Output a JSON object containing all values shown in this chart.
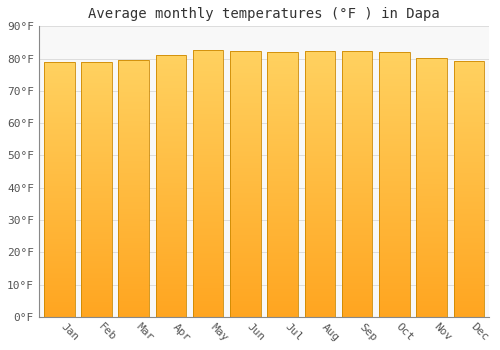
{
  "title": "Average monthly temperatures (°F ) in Dapa",
  "months": [
    "Jan",
    "Feb",
    "Mar",
    "Apr",
    "May",
    "Jun",
    "Jul",
    "Aug",
    "Sep",
    "Oct",
    "Nov",
    "Dec"
  ],
  "values": [
    78.8,
    78.8,
    79.7,
    81.0,
    82.8,
    82.2,
    81.9,
    82.2,
    82.2,
    81.9,
    80.2,
    79.3
  ],
  "ylim": [
    0,
    90
  ],
  "yticks": [
    0,
    10,
    20,
    30,
    40,
    50,
    60,
    70,
    80,
    90
  ],
  "bar_color_bottom": "#FFA520",
  "bar_color_top": "#FFD060",
  "bar_edge_color": "#CC8800",
  "background_color": "#FFFFFF",
  "plot_bg_color": "#F8F8F8",
  "grid_color": "#DDDDDD",
  "title_fontsize": 10,
  "tick_fontsize": 8,
  "bar_width": 0.82
}
